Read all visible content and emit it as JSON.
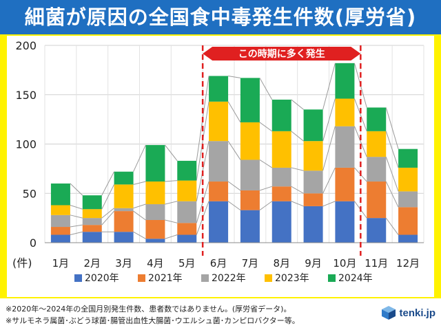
{
  "title": "細菌が原因の全国食中毒発生件数(厚労省)",
  "chart_data": {
    "type": "bar",
    "stacked": true,
    "categories": [
      "1月",
      "2月",
      "3月",
      "4月",
      "5月",
      "6月",
      "7月",
      "8月",
      "9月",
      "10月",
      "11月",
      "12月"
    ],
    "series": [
      {
        "name": "2020年",
        "color": "#4472c4",
        "values": [
          8,
          11,
          11,
          4,
          8,
          42,
          33,
          42,
          37,
          42,
          25,
          8
        ]
      },
      {
        "name": "2021年",
        "color": "#ed7d31",
        "values": [
          8,
          7,
          21,
          19,
          12,
          20,
          20,
          15,
          13,
          34,
          37,
          28
        ]
      },
      {
        "name": "2022年",
        "color": "#a5a5a5",
        "values": [
          12,
          7,
          3,
          16,
          22,
          41,
          31,
          19,
          23,
          42,
          25,
          16
        ]
      },
      {
        "name": "2023年",
        "color": "#ffc000",
        "values": [
          10,
          9,
          24,
          23,
          21,
          40,
          38,
          37,
          30,
          28,
          26,
          24
        ]
      },
      {
        "name": "2024年",
        "color": "#1aaa55",
        "values": [
          22,
          14,
          13,
          37,
          20,
          26,
          45,
          32,
          32,
          36,
          24,
          19
        ]
      }
    ],
    "ylim": [
      0,
      200
    ],
    "yticks": [
      0,
      50,
      100,
      150,
      200
    ],
    "ylabel": "(件)",
    "legend_position": "bottom",
    "highlight": {
      "label": "この時期に多く発生",
      "from": "6月",
      "to": "10月"
    }
  },
  "footnotes": {
    "line1": "※2020年～2024年の全国月別発生件数、患者数ではありません。(厚労省データ)。",
    "line2": "※サルモネラ属菌･ぶどう球菌･腸管出血性大腸菌･ウエルシュ菌･カンピロバクター等。"
  },
  "logo_text": "tenki.jp"
}
